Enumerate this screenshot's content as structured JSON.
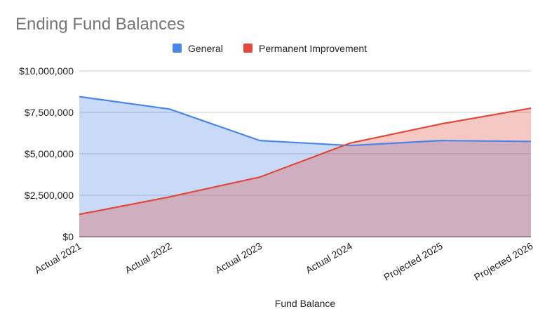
{
  "chart_data": {
    "type": "area",
    "title": "Ending Fund Balances",
    "xlabel": "Fund Balance",
    "ylabel": "",
    "categories": [
      "Actual 2021",
      "Actual 2022",
      "Actual 2023",
      "Actual 2024",
      "Projected 2025",
      "Projected 2026"
    ],
    "y_ticks": [
      "$0",
      "$2,500,000",
      "$5,000,000",
      "$7,500,000",
      "$10,000,000"
    ],
    "ylim": [
      0,
      10000000
    ],
    "grid": true,
    "legend_position": "top",
    "series": [
      {
        "name": "General",
        "color": "#4a86e8",
        "fill": "#c5d7f8",
        "values": [
          8450000,
          7700000,
          5800000,
          5500000,
          5800000,
          5750000
        ]
      },
      {
        "name": "Permanent Improvement",
        "color": "#e04a3c",
        "fill": "#f4b9b3",
        "values": [
          1350000,
          2400000,
          3600000,
          5650000,
          6800000,
          7750000
        ]
      }
    ]
  }
}
